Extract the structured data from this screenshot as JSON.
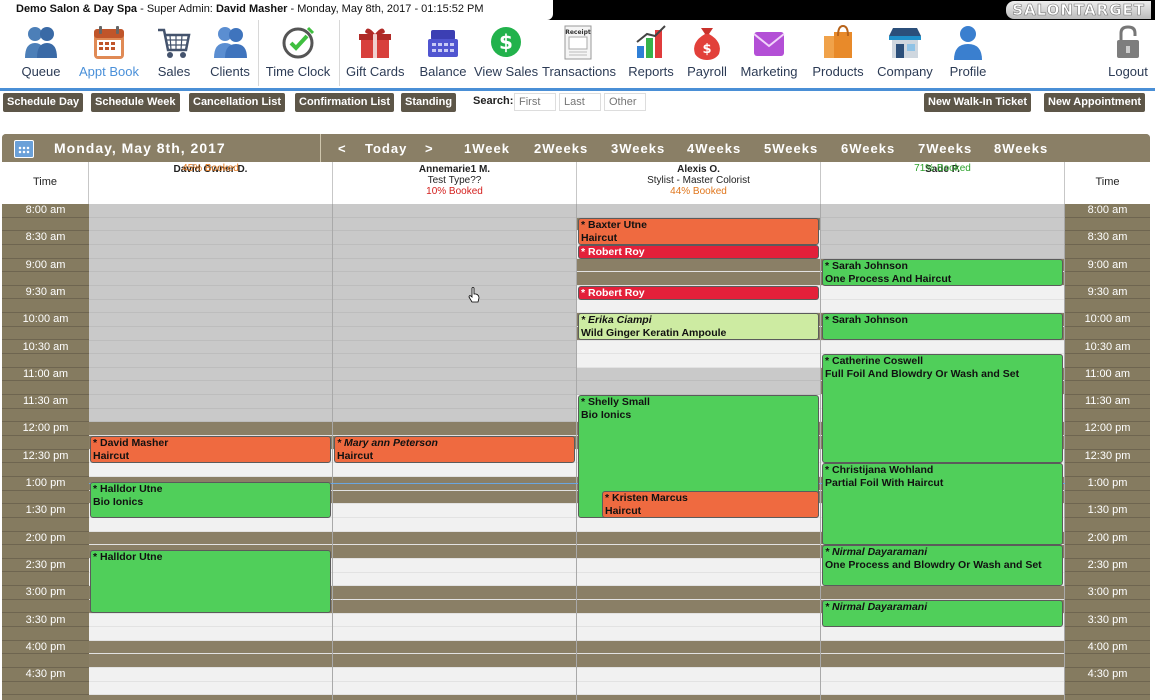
{
  "window": {
    "salon": "Demo Salon & Day Spa",
    "role": "Super Admin:",
    "user": "David Masher",
    "datetime": "Monday, May 8th, 2017 - 01:15:52 PM",
    "brand": "SALONTARGET"
  },
  "toolbar": [
    {
      "label": "Queue",
      "icon": "queue-icon"
    },
    {
      "label": "Appt Book",
      "icon": "appt-book-icon"
    },
    {
      "label": "Sales",
      "icon": "cart-icon"
    },
    {
      "label": "Clients",
      "icon": "clients-icon"
    },
    {
      "label": "Time Clock",
      "icon": "clock-icon"
    },
    {
      "label": "Gift Cards",
      "icon": "gift-icon"
    },
    {
      "label": "Balance",
      "icon": "register-icon"
    },
    {
      "label": "View Sales",
      "icon": "dollar-icon"
    },
    {
      "label": "Transactions",
      "icon": "receipt-icon"
    },
    {
      "label": "Reports",
      "icon": "reports-icon"
    },
    {
      "label": "Payroll",
      "icon": "payroll-icon"
    },
    {
      "label": "Marketing",
      "icon": "mail-icon"
    },
    {
      "label": "Products",
      "icon": "bags-icon"
    },
    {
      "label": "Company",
      "icon": "store-icon"
    },
    {
      "label": "Profile",
      "icon": "profile-icon"
    },
    {
      "label": "Logout",
      "icon": "lock-icon"
    }
  ],
  "receipt_text": "Receipt",
  "nav": {
    "schedule_day": "Schedule Day",
    "schedule_week": "Schedule Week",
    "cancellation_list": "Cancellation List",
    "confirmation_list": "Confirmation List",
    "standing": "Standing",
    "search_label": "Search:",
    "first_ph": "First",
    "last_ph": "Last",
    "other_ph": "Other",
    "new_walkin": "New Walk-In Ticket",
    "new_appointment": "New Appointment"
  },
  "calendar": {
    "date": "Monday, May 8th, 2017",
    "prev": "<",
    "today": "Today",
    "next": ">",
    "weeks": [
      "1Week",
      "2Weeks",
      "3Weeks",
      "4Weeks",
      "5Weeks",
      "6Weeks",
      "7Weeks",
      "8Weeks"
    ],
    "time_header": "Time"
  },
  "staff": [
    {
      "name": "David Owner D.",
      "title": "",
      "booked": "45% Booked",
      "booked_color": "#e0761c"
    },
    {
      "name": "Annemarie1 M.",
      "title": "Test Type??",
      "booked": "10% Booked",
      "booked_color": "#d4201e"
    },
    {
      "name": "Alexis O.",
      "title": "Stylist - Master Colorist",
      "booked": "44% Booked",
      "booked_color": "#e0761c"
    },
    {
      "name": "Sade P.",
      "title": "",
      "booked": "71% Booked",
      "booked_color": "#2aa12a"
    }
  ],
  "times": [
    "8:00 am",
    "8:30 am",
    "9:00 am",
    "9:30 am",
    "10:00 am",
    "10:30 am",
    "11:00 am",
    "11:30 am",
    "12:00 pm",
    "12:30 pm",
    "1:00 pm",
    "1:30 pm",
    "2:00 pm",
    "2:30 pm",
    "3:00 pm",
    "3:30 pm",
    "4:00 pm",
    "4:30 pm"
  ],
  "appointments": [
    {
      "staff": 0,
      "start": "12:15 pm",
      "end": "12:45 pm",
      "client": "* David Masher",
      "service": "Haircut",
      "color": "orange",
      "italic": false
    },
    {
      "staff": 0,
      "start": "1:05 pm",
      "end": "1:45 pm",
      "client": "* Halldor Utne",
      "service": "Bio Ionics",
      "color": "green",
      "italic": false
    },
    {
      "staff": 0,
      "start": "2:20 pm",
      "end": "3:30 pm",
      "client": "* Halldor Utne",
      "service": "",
      "color": "green",
      "italic": false
    },
    {
      "staff": 1,
      "start": "12:15 pm",
      "end": "12:45 pm",
      "client": "* Mary ann Peterson",
      "service": "Haircut",
      "color": "orange",
      "italic": true
    },
    {
      "staff": 2,
      "start": "8:15 am",
      "end": "8:45 am",
      "client": "* Baxter Utne",
      "service": "Haircut",
      "color": "orange",
      "italic": false
    },
    {
      "staff": 2,
      "start": "8:45 am",
      "end": "9:00 am",
      "client": "* Robert Roy",
      "service": "",
      "color": "red",
      "italic": false
    },
    {
      "staff": 2,
      "start": "9:30 am",
      "end": "9:45 am",
      "client": "* Robert Roy",
      "service": "",
      "color": "red",
      "italic": false
    },
    {
      "staff": 2,
      "start": "10:00 am",
      "end": "10:30 am",
      "client": "* Erika Ciampi",
      "service": "Wild Ginger Keratin Ampoule",
      "color": "lgreen",
      "italic": true
    },
    {
      "staff": 2,
      "start": "11:30 am",
      "end": "1:45 pm",
      "client": "* Shelly Small",
      "service": "Bio Ionics",
      "color": "green",
      "italic": false
    },
    {
      "staff": 2,
      "start": "1:15 pm",
      "end": "1:45 pm",
      "client": "* Kristen Marcus",
      "service": "Haircut",
      "color": "orange",
      "italic": false,
      "inset": true
    },
    {
      "staff": 3,
      "start": "9:00 am",
      "end": "9:30 am",
      "client": "* Sarah Johnson",
      "service": "One Process And Haircut",
      "color": "green",
      "italic": false
    },
    {
      "staff": 3,
      "start": "10:00 am",
      "end": "10:30 am",
      "client": "* Sarah Johnson",
      "service": "",
      "color": "green",
      "italic": false
    },
    {
      "staff": 3,
      "start": "10:45 am",
      "end": "12:45 pm",
      "client": "* Catherine Coswell",
      "service": "Full Foil And Blowdry Or Wash and Set",
      "color": "green",
      "italic": false
    },
    {
      "staff": 3,
      "start": "12:45 pm",
      "end": "2:15 pm",
      "client": "* Christijana Wohland",
      "service": "Partial Foil With Haircut",
      "color": "green",
      "italic": false
    },
    {
      "staff": 3,
      "start": "2:15 pm",
      "end": "3:00 pm",
      "client": "* Nirmal Dayaramani",
      "service": "One Process and Blowdry Or Wash and Set",
      "color": "green",
      "italic": true
    },
    {
      "staff": 3,
      "start": "3:15 pm",
      "end": "3:45 pm",
      "client": "* Nirmal Dayaramani",
      "service": "",
      "color": "green",
      "italic": true
    }
  ]
}
